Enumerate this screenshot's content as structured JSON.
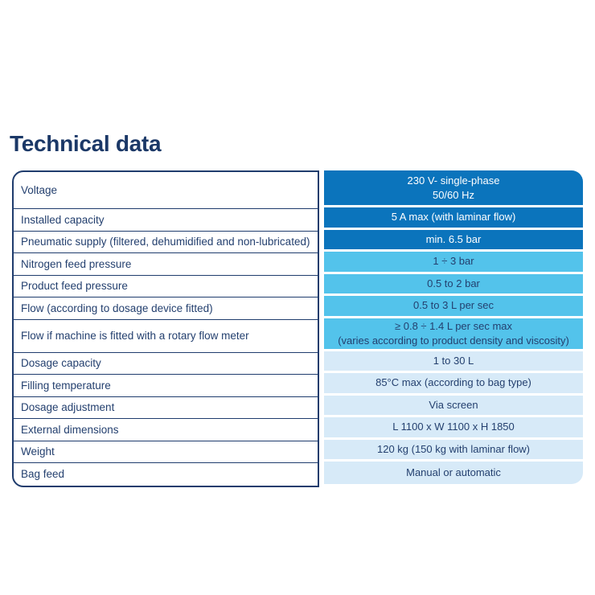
{
  "page_title": "Technical data",
  "colors": {
    "title": "#1b3867",
    "navy": "#1f3c6d",
    "navy_text": "#24406f",
    "row_dark": "#0b74bc",
    "row_medium": "#53c3eb",
    "row_light": "#d7eaf8",
    "text_on_dark": "#ffffff"
  },
  "table": {
    "rows": [
      {
        "label": "Voltage",
        "value": "230 V- single-phase",
        "value2": "50/60 Hz",
        "tone": "dark"
      },
      {
        "label": "Installed capacity",
        "value": "5 A max (with laminar flow)",
        "tone": "dark"
      },
      {
        "label": "Pneumatic supply (filtered, dehumidified and non-lubricated)",
        "value": "min. 6.5 bar",
        "tone": "dark"
      },
      {
        "label": "Nitrogen feed pressure",
        "value": "1 ÷ 3 bar",
        "tone": "medium"
      },
      {
        "label": "Product feed pressure",
        "value": "0.5 to 2 bar",
        "tone": "medium"
      },
      {
        "label": "Flow (according to dosage device fitted)",
        "value": "0.5 to 3 L per sec",
        "tone": "medium"
      },
      {
        "label": "Flow if machine is fitted with a rotary flow meter",
        "value": "≥ 0.8 ÷ 1.4 L per sec max",
        "value2": "(varies according to product density and viscosity)",
        "tone": "medium"
      },
      {
        "label": "Dosage capacity",
        "value": "1 to 30 L",
        "tone": "light"
      },
      {
        "label": "Filling temperature",
        "value": "85°C max (according to bag type)",
        "tone": "light"
      },
      {
        "label": "Dosage adjustment",
        "value": "Via screen",
        "tone": "light"
      },
      {
        "label": "External dimensions",
        "value": "L 1100 x W 1100 x H 1850",
        "tone": "light"
      },
      {
        "label": "Weight",
        "value": "120 kg (150 kg with laminar flow)",
        "tone": "light"
      },
      {
        "label": "Bag feed",
        "value": "Manual or automatic",
        "tone": "light"
      }
    ]
  }
}
